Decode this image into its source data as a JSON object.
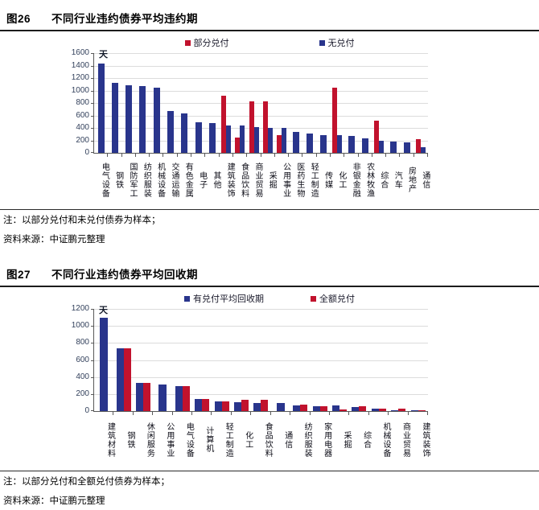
{
  "figure1": {
    "id": "图26",
    "title": "不同行业违约债券平均违约期",
    "note": "注：以部分兑付和未兑付债券为样本；",
    "source": "资料来源：中证鹏元整理"
  },
  "figure2": {
    "id": "图27",
    "title": "不同行业违约债券平均回收期",
    "note": "注：以部分兑付和全额兑付债券为样本；",
    "source": "资料来源：中证鹏元整理"
  },
  "colors": {
    "bar_blue": "#29358C",
    "bar_red": "#C1122D",
    "gridline": "#DCDCDC",
    "axis": "#595959"
  },
  "chart_data": [
    {
      "type": "bar",
      "title": "图26 不同行业违约债券平均违约期",
      "ylabel": "天",
      "ylim": [
        0,
        1600
      ],
      "ytick_step": 200,
      "grid": true,
      "legend_position": "top",
      "categories": [
        "电气设备",
        "钢铁",
        "国防军工",
        "纺织服装",
        "机械设备",
        "交通运输",
        "有色金属",
        "电子",
        "其他",
        "建筑装饰",
        "食品饮料",
        "商业贸易",
        "采掘",
        "公用事业",
        "医药生物",
        "轻工制造",
        "传媒",
        "化工",
        "非银金融",
        "农林牧渔",
        "综合",
        "汽车",
        "房地产",
        "通信"
      ],
      "series": [
        {
          "name": "部分兑付",
          "color": "#C1122D",
          "values": [
            null,
            null,
            null,
            null,
            null,
            null,
            null,
            null,
            null,
            920,
            245,
            825,
            830,
            280,
            null,
            null,
            null,
            1050,
            null,
            null,
            520,
            null,
            null,
            215
          ]
        },
        {
          "name": "无兑付",
          "color": "#29358C",
          "values": [
            1430,
            1120,
            1080,
            1070,
            1040,
            670,
            630,
            490,
            475,
            440,
            445,
            415,
            395,
            395,
            330,
            315,
            290,
            285,
            270,
            235,
            200,
            185,
            165,
            85
          ]
        }
      ]
    },
    {
      "type": "bar",
      "title": "图27 不同行业违约债券平均回收期",
      "ylabel": "天",
      "ylim": [
        0,
        1200
      ],
      "ytick_step": 200,
      "grid": true,
      "legend_position": "top",
      "categories": [
        "建筑材料",
        "钢铁",
        "休闲服务",
        "公用事业",
        "电气设备",
        "计算机",
        "轻工制造",
        "化工",
        "食品饮料",
        "通信",
        "纺织服装",
        "家用电器",
        "采掘",
        "综合",
        "机械设备",
        "商业贸易",
        "建筑装饰"
      ],
      "series": [
        {
          "name": "有兑付平均回收期",
          "color": "#29358C",
          "values": [
            1100,
            740,
            330,
            310,
            290,
            140,
            110,
            105,
            95,
            90,
            70,
            60,
            65,
            45,
            25,
            12,
            5
          ]
        },
        {
          "name": "全额兑付",
          "color": "#C1122D",
          "values": [
            null,
            740,
            330,
            null,
            290,
            140,
            110,
            135,
            130,
            null,
            80,
            60,
            15,
            55,
            30,
            25,
            5
          ]
        }
      ]
    }
  ]
}
